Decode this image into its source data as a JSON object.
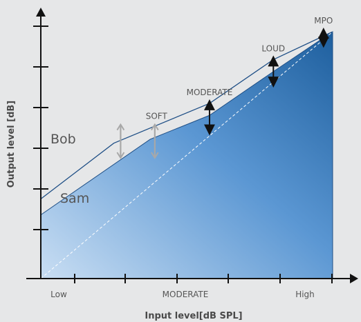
{
  "chart_data": {
    "type": "area",
    "title": "",
    "xlabel": "Input level[dB SPL]",
    "ylabel": "Output level [dB]",
    "x_ticks": [
      "Low",
      "MODERATE",
      "High"
    ],
    "series": [
      {
        "name": "Bob",
        "style": "outline",
        "points": [
          [
            0,
            2.0
          ],
          [
            1.6,
            3.4
          ],
          [
            3.7,
            4.4
          ],
          [
            5.1,
            5.5
          ],
          [
            6.4,
            6.2
          ]
        ]
      },
      {
        "name": "Sam",
        "style": "filled-gradient",
        "points": [
          [
            0,
            1.6
          ],
          [
            2.4,
            3.5
          ],
          [
            3.7,
            4.1
          ],
          [
            5.1,
            5.2
          ],
          [
            6.4,
            6.2
          ],
          [
            6.4,
            6.0
          ],
          [
            6.4,
            0
          ]
        ]
      },
      {
        "name": "",
        "style": "dashed-diagonal",
        "points": [
          [
            0,
            0
          ],
          [
            6.4,
            6.2
          ]
        ]
      }
    ],
    "annotations": [
      {
        "text": "SOFT",
        "x": 2.4,
        "y_from": 3.1,
        "y_to": 3.8,
        "color": "#a8a8a8"
      },
      {
        "text": "MODERATE",
        "x": 3.7,
        "y_from": 3.7,
        "y_to": 4.4,
        "color": "#111111"
      },
      {
        "text": "LOUD",
        "x": 5.1,
        "y_from": 4.9,
        "y_to": 5.5,
        "color": "#111111"
      },
      {
        "text": "MPO",
        "x": 6.2,
        "y_from": 5.9,
        "y_to": 6.2,
        "color": "#111111"
      }
    ],
    "xlim": [
      0,
      6.4
    ],
    "ylim": [
      0,
      6.2
    ],
    "colors": {
      "fill_light": "#c9def3",
      "fill_dark": "#1e5f9e",
      "outline": "#1f4f86",
      "axis": "#111111",
      "background": "#e6e7e8"
    }
  }
}
